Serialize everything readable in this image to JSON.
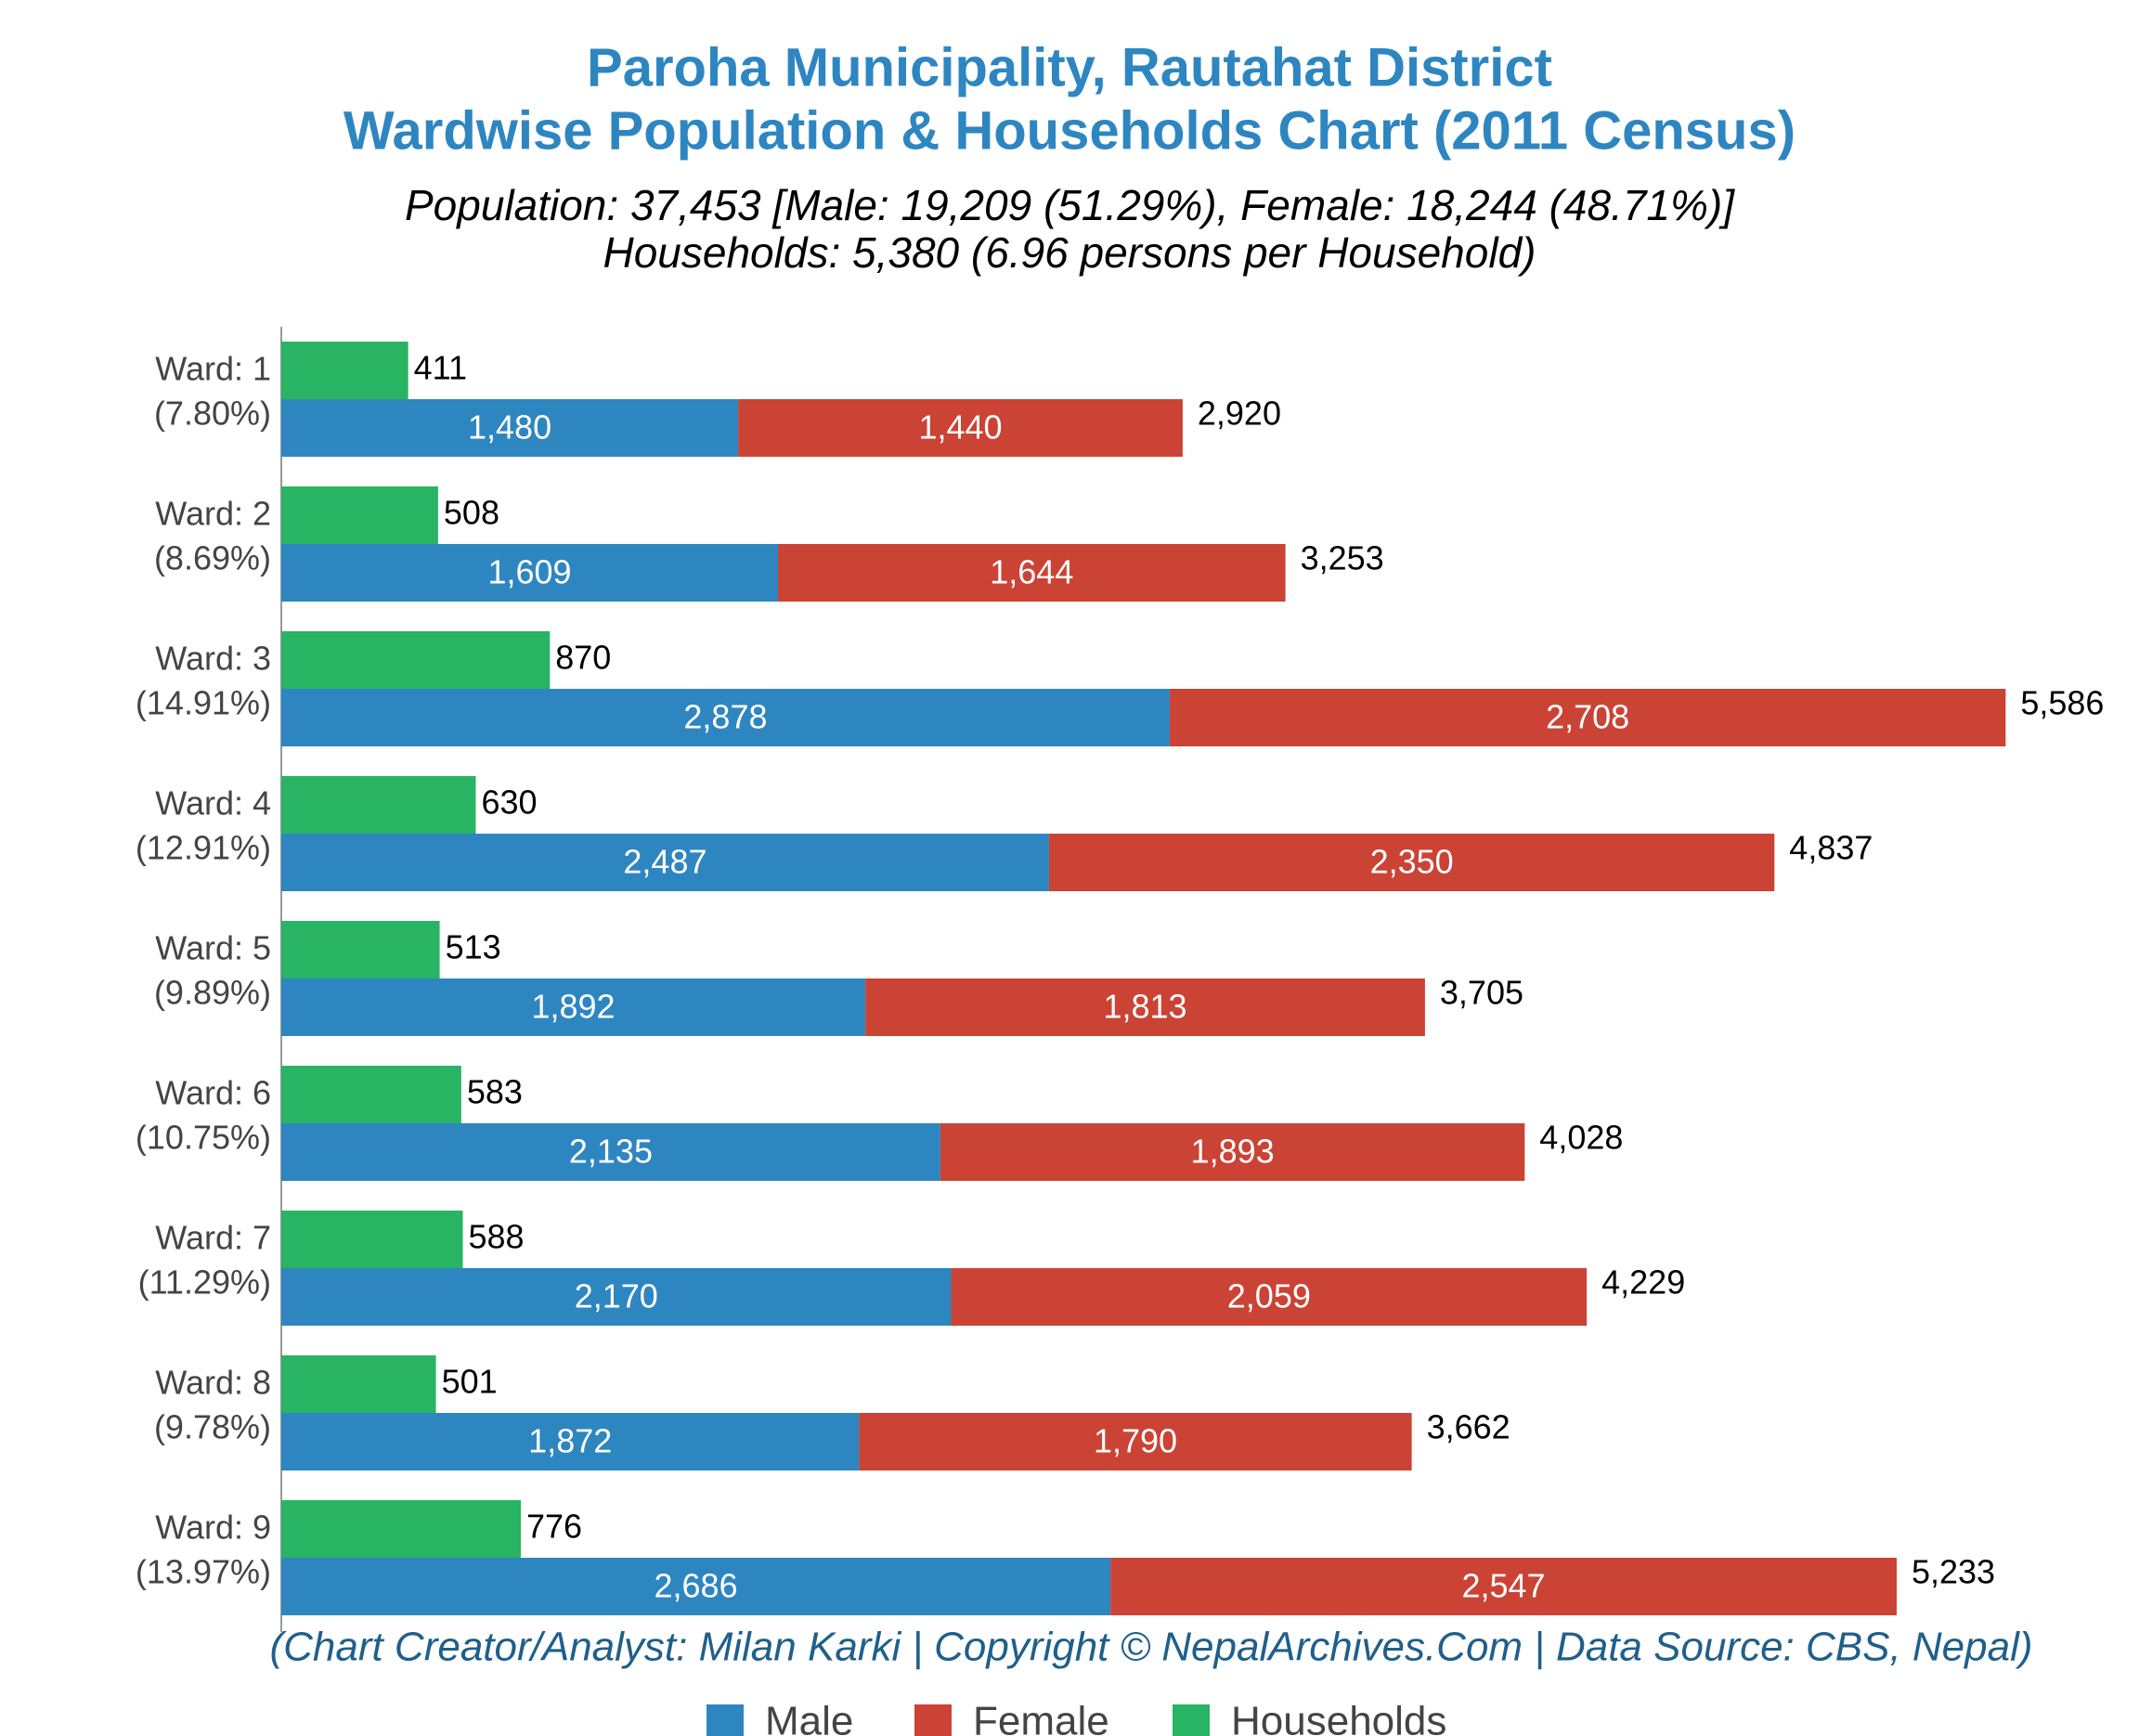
{
  "chart_data": {
    "type": "bar",
    "orientation": "horizontal",
    "stacked": true,
    "title": [
      "Paroha Municipality, Rautahat District",
      "Wardwise Population & Households Chart (2011 Census)"
    ],
    "subtitle": [
      "Population: 37,453 [Male: 19,209 (51.29%), Female: 18,244 (48.71%)]",
      "Households: 5,380 (6.96 persons per Household)"
    ],
    "credit": "(Chart Creator/Analyst: Milan Karki | Copyright © NepalArchives.Com | Data Source: CBS, Nepal)",
    "categories": [
      "Ward: 1",
      "Ward: 2",
      "Ward: 3",
      "Ward: 4",
      "Ward: 5",
      "Ward: 6",
      "Ward: 7",
      "Ward: 8",
      "Ward: 9"
    ],
    "category_shares": [
      "(7.80%)",
      "(8.69%)",
      "(14.91%)",
      "(12.91%)",
      "(9.89%)",
      "(10.75%)",
      "(11.29%)",
      "(9.78%)",
      "(13.97%)"
    ],
    "series": [
      {
        "name": "Male",
        "color": "#2e86c1",
        "stack": "population",
        "values": [
          1480,
          1609,
          2878,
          2487,
          1892,
          2135,
          2170,
          1872,
          2686
        ],
        "value_labels": [
          "1,480",
          "1,609",
          "2,878",
          "2,487",
          "1,892",
          "2,135",
          "2,170",
          "1,872",
          "2,686"
        ]
      },
      {
        "name": "Female",
        "color": "#cb4335",
        "stack": "population",
        "values": [
          1440,
          1644,
          2708,
          2350,
          1813,
          1893,
          2059,
          1790,
          2547
        ],
        "value_labels": [
          "1,440",
          "1,644",
          "2,708",
          "2,350",
          "1,813",
          "1,893",
          "2,059",
          "1,790",
          "2,547"
        ]
      },
      {
        "name": "Households",
        "color": "#28b463",
        "stack": "households",
        "values": [
          411,
          508,
          870,
          630,
          513,
          583,
          588,
          501,
          776
        ]
      }
    ],
    "totals": {
      "values": [
        2920,
        3253,
        5586,
        4837,
        3705,
        4028,
        4229,
        3662,
        5233
      ],
      "value_labels": [
        "2,920",
        "3,253",
        "5,586",
        "4,837",
        "3,705",
        "4,028",
        "4,229",
        "3,662",
        "5,233"
      ]
    },
    "xlim": [
      0,
      6000
    ],
    "grid": false,
    "legend": "bottom"
  }
}
